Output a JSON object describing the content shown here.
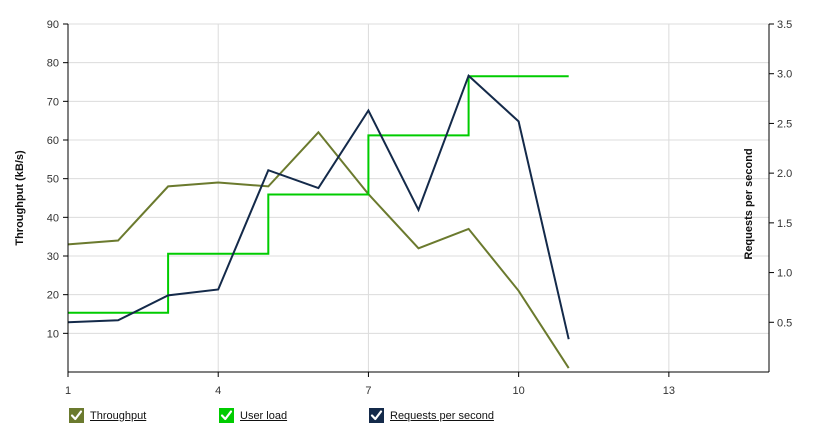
{
  "chart_data": {
    "type": "line",
    "x_axis": {
      "range": [
        1,
        15
      ],
      "ticks": [
        1,
        4,
        7,
        10,
        13
      ]
    },
    "y_left": {
      "label": "Throughput (kB/s)",
      "range": [
        0,
        90
      ],
      "ticks": [
        10,
        20,
        30,
        40,
        50,
        60,
        70,
        80,
        90
      ]
    },
    "y_right": {
      "label": "Requests per second",
      "range": [
        0,
        3.5
      ],
      "ticks": [
        0.5,
        1.0,
        1.5,
        2.0,
        2.5,
        3.0,
        3.5
      ],
      "tick_labels": [
        "0.5",
        "1.0",
        "1.5",
        "2.0",
        "2.5",
        "3.0",
        "3.5"
      ]
    },
    "grid": true,
    "legend_position": "bottom",
    "series": [
      {
        "name": "Throughput",
        "axis": "left",
        "color": "#6b7a2e",
        "step": false,
        "x": [
          1,
          2,
          3,
          4,
          5,
          6,
          7,
          8,
          9,
          10,
          11
        ],
        "y": [
          33,
          34,
          48,
          49,
          48,
          62,
          46,
          32,
          37,
          21,
          1
        ]
      },
      {
        "name": "User load",
        "axis": "left",
        "color": "#00cc00",
        "step": true,
        "x": [
          1,
          2,
          3,
          4,
          5,
          6,
          7,
          8,
          9,
          10,
          11
        ],
        "y": [
          15.3,
          15.3,
          30.6,
          30.6,
          45.9,
          45.9,
          61.2,
          61.2,
          76.5,
          76.5,
          76.5
        ]
      },
      {
        "name": "Requests per second",
        "axis": "right",
        "color": "#142a4a",
        "step": false,
        "x": [
          1,
          2,
          3,
          4,
          5,
          6,
          7,
          8,
          9,
          10,
          11
        ],
        "y": [
          0.5,
          0.52,
          0.77,
          0.83,
          2.03,
          1.85,
          2.63,
          1.63,
          2.98,
          2.52,
          0.33
        ]
      }
    ]
  }
}
